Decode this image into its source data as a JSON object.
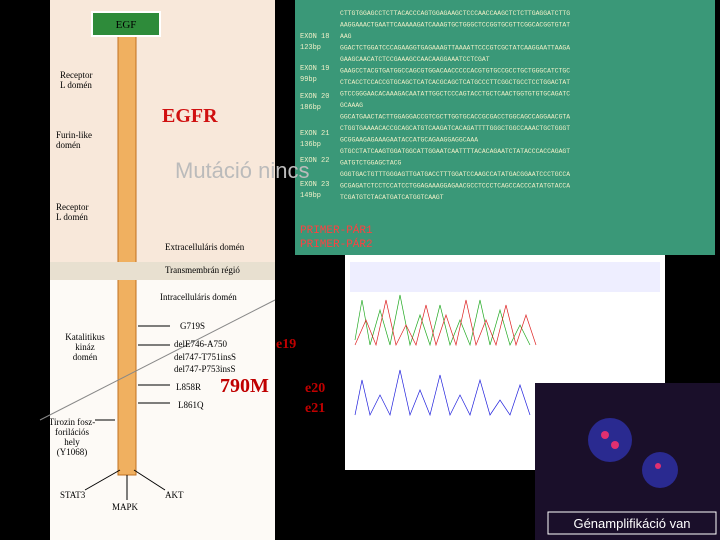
{
  "diagram": {
    "egf": "EGF",
    "egfr": "EGFR",
    "domains": [
      "Receptor\nL domén",
      "Furin-like\ndomén",
      "Receptor\nL domén",
      "Extracelluláris domén",
      "Transmembrán régió",
      "Intracelluláris domén",
      "Katalitikus\nkináz\ndomén",
      "Tirozin fosz-\nforilációs\nhely\n(Y1068)"
    ],
    "mutations": [
      "G719S",
      "delE746-A750",
      "del747-T751insS",
      "del747-P753insS",
      "L858R",
      "L861Q"
    ],
    "pathways": [
      "STAT3",
      "AKT",
      "MAPK"
    ],
    "exons_big": [
      "e19",
      "790M",
      "e20",
      "e21"
    ],
    "overlay": "Mutáció nincs"
  },
  "sequence_panel": {
    "exons": [
      "EXON 18\n123bp",
      "EXON 19\n99bp",
      "EXON 20\n186bp",
      "EXON 21\n136bp",
      "EXON 22",
      "EXON 23\n149bp"
    ],
    "lines": [
      "CTTGTGGAGCCTCTTACACCCAGTGGAGAAGCTCCCAACCAAGCTCTCTTGAGGATCTTG",
      "AAGGAAACTGAATTCAAAAAGATCAAAGTGCTGGGCTCCGGTGCGTTCGGCACGGTGTAT",
      "AAG",
      "GGACTCTGGATCCCAGAAGGTGAGAAAGTTAAAATTCCCGTCGCTATCAAGGAATTAAGA",
      "GAAGCAACATCTCCGAAAGCCAACAAGGAAATCCTCGAT",
      "GAAGCCTACGTGATGGCCAGCGTGGACAACCCCCACGTGTGCCGCCTGCTGGGCATCTGC",
      "CTCACCTCCACCGTGCAGCTCATCACGCAGCTCATGCCCTTCGGCTGCCTCCTGGACTAT",
      "GTCCGGGAACACAAAGACAATATTGGCTCCCAGTACCTGCTCAACTGGTGTGTGCAGATC",
      "GCAAAG",
      "GGCATGAACTACTTGGAGGACCGTCGCTTGGTGCACCGCGACCTGGCAGCCAGGAACGTA",
      "CTGGTGAAAACACCGCAGCATGTCAAGATCACAGATTTTGGGCTGGCCAAACTGCTGGGT",
      "GCGGAAGAGAAAGAATACCATGCAGAAGGAGGCAAA",
      "GTGCCTATCAAGTGGATGGCATTGGAATCAATTTTACACAGAATCTATACCCACCAGAGT",
      "GATGTCTGGAGCTACG",
      "GGGTGACTGTTTGGGAGTTGATGACCTTTGGATCCAAGCCATATGACGGAATCCCTGCCA",
      "GCGAGATCTCCTCCATCCTGGAGAAAGGAGAACGCCTCCCTCAGCCACCCATATGTACCA",
      "TCGATGTCTACATGATCATGGTCAAGT"
    ],
    "primers": [
      "PRIMER-PÁR1",
      "PRIMER-PÁR2"
    ]
  },
  "fish": {
    "caption": "Génamplifikáció van"
  }
}
